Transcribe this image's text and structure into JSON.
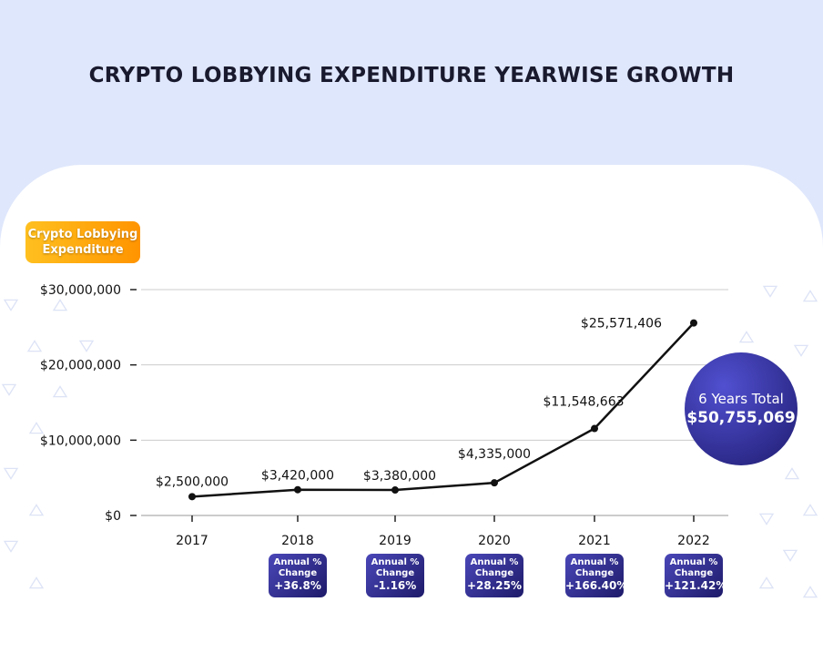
{
  "title": "CRYPTO LOBBYING EXPENDITURE YEARWISE GROWTH",
  "chart_data": {
    "type": "line",
    "title": "CRYPTO LOBBYING EXPENDITURE YEARWISE GROWTH",
    "ylabel": "Crypto Lobbying Expenditure",
    "categories": [
      "2017",
      "2018",
      "2019",
      "2020",
      "2021",
      "2022"
    ],
    "values": [
      2500000,
      3420000,
      3380000,
      4335000,
      11548663,
      25571406
    ],
    "data_labels": [
      "$2,500,000",
      "$3,420,000",
      "$3,380,000",
      "$4,335,000",
      "$11,548,663",
      "$25,571,406"
    ],
    "yticks": [
      "$0",
      "$10,000,000",
      "$20,000,000",
      "$30,000,000"
    ],
    "ylim": [
      0,
      30000000
    ],
    "grid": true,
    "line_color": "#111111",
    "annual_change": {
      "label_line1": "Annual %",
      "label_line2": "Change",
      "values": [
        "+36.8%",
        "-1.16%",
        "+28.25%",
        "+166.40%",
        "+121.42%"
      ]
    },
    "total": {
      "label": "6 Years Total",
      "value": "$50,755,069"
    }
  },
  "colors": {
    "background": "#dfe7fc",
    "label_orange": "#ff9f0a",
    "badge_blue": "#2e2b8f"
  }
}
